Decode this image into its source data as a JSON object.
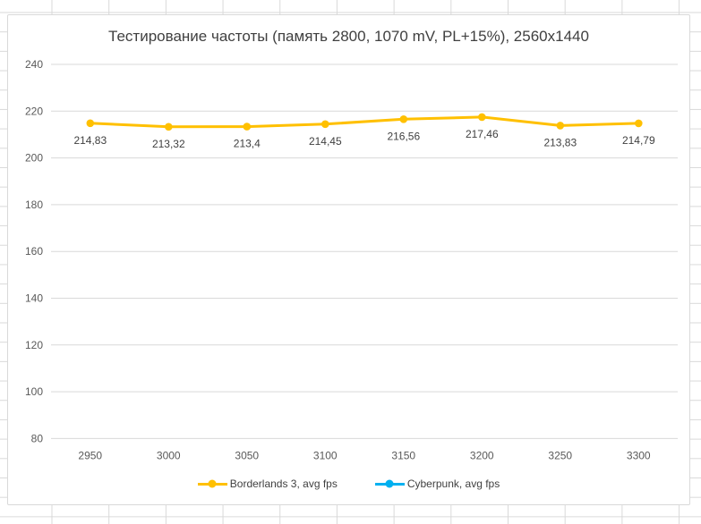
{
  "chart_data": {
    "type": "line",
    "title": "Тестирование частоты (память 2800, 1070 mV, PL+15%), 2560x1440",
    "xlabel": "",
    "ylabel": "",
    "x_labels": [
      "2950",
      "3000",
      "3050",
      "3100",
      "3150",
      "3200",
      "3250",
      "3300"
    ],
    "ylim": [
      80,
      240
    ],
    "ytick_step": 20,
    "ytick_labels": [
      "240",
      "220",
      "200",
      "180",
      "160",
      "140",
      "120",
      "100",
      "80"
    ],
    "grid": true,
    "legend_position": "bottom",
    "series": [
      {
        "name": "Borderlands 3, avg fps",
        "color": "#FFC000",
        "values": [
          214.83,
          213.32,
          213.4,
          214.45,
          216.56,
          217.46,
          213.83,
          214.79
        ],
        "labels": [
          "214,83",
          "213,32",
          "213,4",
          "214,45",
          "216,56",
          "217,46",
          "213,83",
          "214,79"
        ]
      },
      {
        "name": "Cyberpunk, avg fps",
        "color": "#00B0F0",
        "values": [],
        "labels": []
      }
    ]
  },
  "colors": {
    "grid_line": "#d9d9d9",
    "chart_border": "#d9d9d9",
    "axis_text": "#595959",
    "data_label_text": "#404040",
    "title_text": "#404040",
    "sheet_grid": "#d9d9d9"
  }
}
